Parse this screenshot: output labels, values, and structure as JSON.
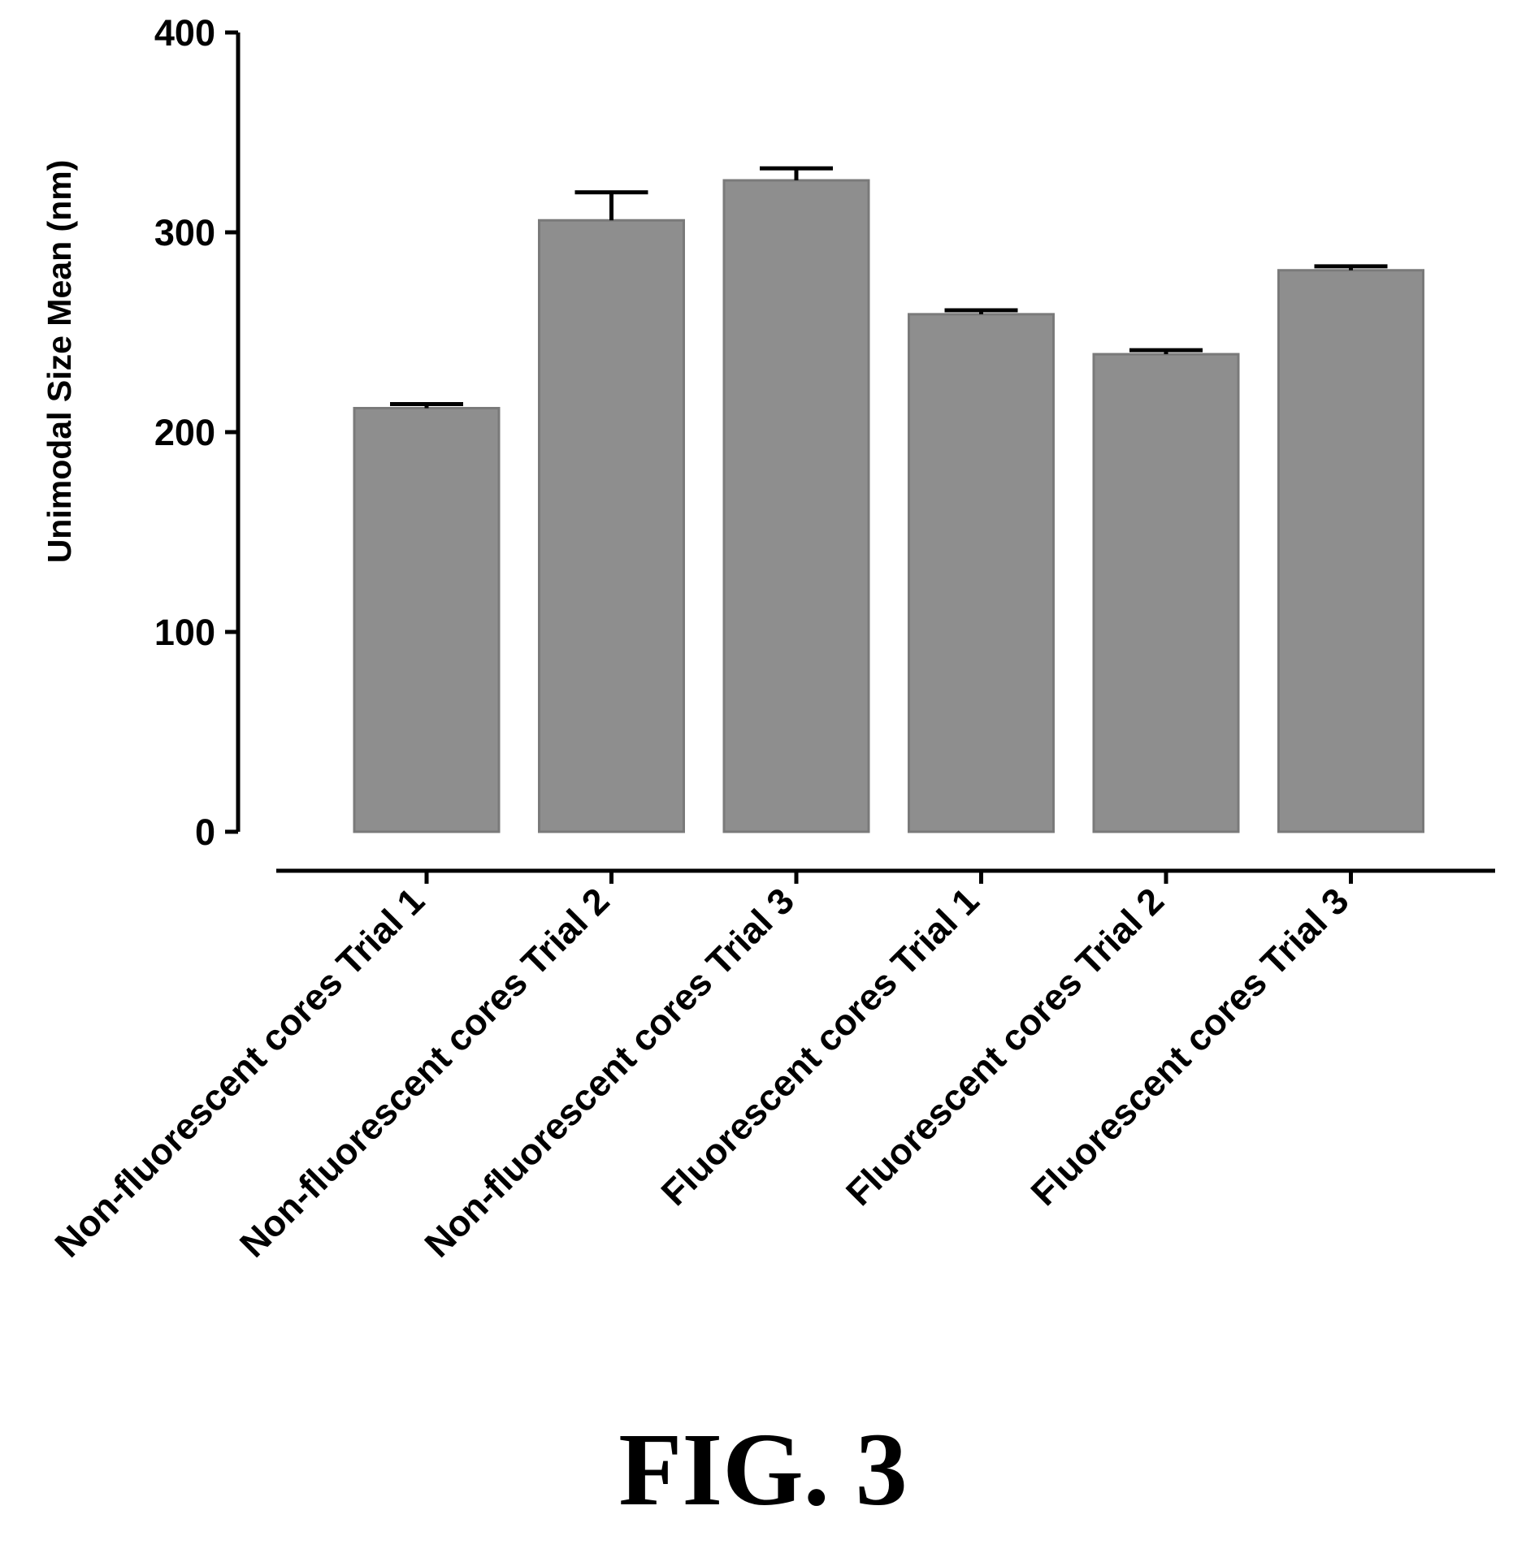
{
  "chart_data": {
    "type": "bar",
    "ylabel": "Unimodal Size Mean (nm)",
    "ylim": [
      0,
      400
    ],
    "yticks": [
      0,
      100,
      200,
      300,
      400
    ],
    "categories": [
      "Non-fluorescent cores Trial 1",
      "Non-fluorescent cores Trial 2",
      "Non-fluorescent cores Trial 3",
      "Fluorescent cores Trial 1",
      "Fluorescent cores Trial 2",
      "Fluorescent cores Trial 3"
    ],
    "values": [
      212,
      306,
      326,
      259,
      239,
      281
    ],
    "error_upper": [
      2,
      14,
      6,
      2,
      2,
      2
    ],
    "bar_color": "#8e8e8e",
    "grid": false,
    "legend": "none"
  },
  "caption": "FIG. 3"
}
